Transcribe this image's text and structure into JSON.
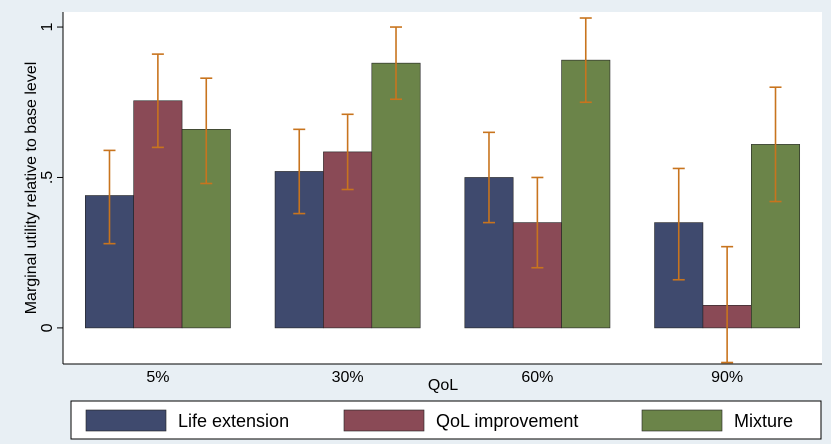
{
  "chart_data": {
    "type": "bar",
    "xlabel": "QoL",
    "ylabel": "Marginal utility relative to base level",
    "categories": [
      "5%",
      "30%",
      "60%",
      "90%"
    ],
    "ylim": [
      -0.12,
      1.05
    ],
    "yticks": [
      0,
      0.5,
      1
    ],
    "ytick_labels": [
      "0",
      ".5",
      "1"
    ],
    "grid": false,
    "legend_position": "bottom",
    "series": [
      {
        "name": "Life extension",
        "color": "#3f4a6e",
        "values": [
          0.44,
          0.52,
          0.5,
          0.35
        ],
        "ci_low": [
          0.28,
          0.38,
          0.35,
          0.16
        ],
        "ci_high": [
          0.59,
          0.66,
          0.65,
          0.53
        ]
      },
      {
        "name": "QoL improvement",
        "color": "#8a4a56",
        "values": [
          0.755,
          0.585,
          0.35,
          0.075
        ],
        "ci_low": [
          0.6,
          0.46,
          0.2,
          -0.115
        ],
        "ci_high": [
          0.91,
          0.71,
          0.5,
          0.27
        ]
      },
      {
        "name": "Mixture",
        "color": "#6b8449",
        "values": [
          0.66,
          0.88,
          0.89,
          0.61
        ],
        "ci_low": [
          0.48,
          0.76,
          0.75,
          0.42
        ],
        "ci_high": [
          0.83,
          1.0,
          1.03,
          0.8
        ]
      }
    ],
    "error_bar_color": "#c8741e"
  }
}
